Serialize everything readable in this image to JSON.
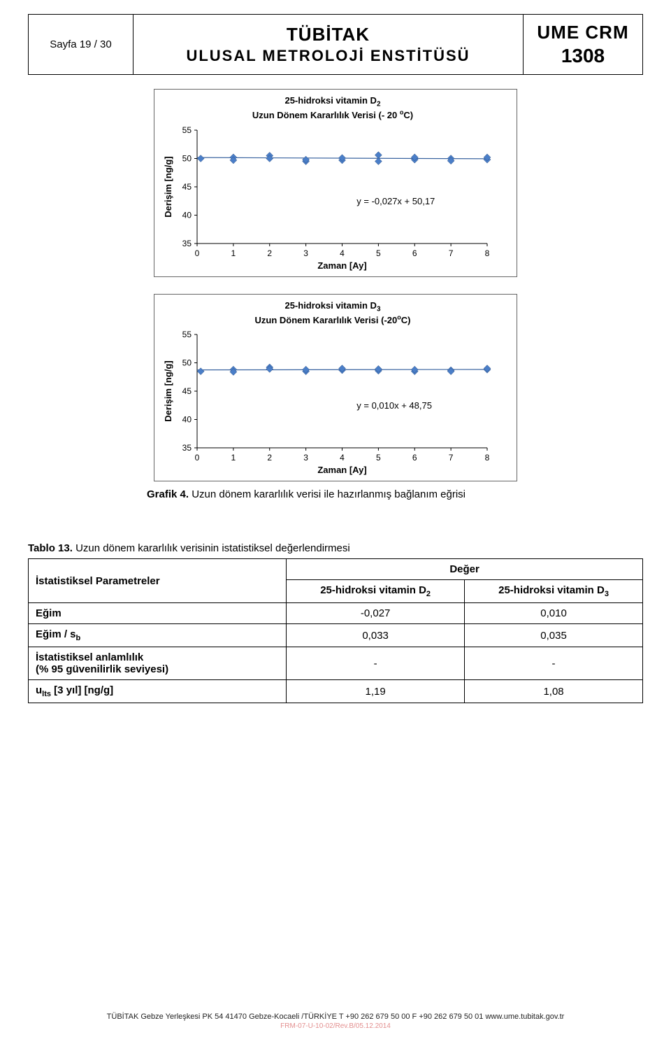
{
  "header": {
    "page_label": "Sayfa  19 / 30",
    "title_main": "TÜBİTAK",
    "title_sub": "ULUSAL  METROLOJİ  ENSTİTÜSÜ",
    "crm_main": "UME CRM",
    "crm_num": "1308"
  },
  "chart1": {
    "title_line1": "25-hidroksi vitamin D",
    "title_sub": "2",
    "title_line2": "Uzun Dönem Kararlılık Verisi (- 20 ",
    "title_sup": "o",
    "title_line2b": "C)",
    "ylabel": "Derişim [ng/g]",
    "xlabel": "Zaman [Ay]",
    "equation": "y = -0,027x + 50,17",
    "yticks": [
      35,
      40,
      45,
      50,
      55
    ],
    "xticks": [
      0,
      1,
      2,
      3,
      4,
      5,
      6,
      7,
      8
    ],
    "trend_y_start": 50.17,
    "trend_y_end": 49.95,
    "points": [
      {
        "x": 0.1,
        "y": 50.0
      },
      {
        "x": 1,
        "y": 50.2
      },
      {
        "x": 1,
        "y": 49.7
      },
      {
        "x": 2,
        "y": 50.5
      },
      {
        "x": 2,
        "y": 50.0
      },
      {
        "x": 3,
        "y": 49.5
      },
      {
        "x": 3,
        "y": 49.8
      },
      {
        "x": 4,
        "y": 49.7
      },
      {
        "x": 4,
        "y": 50.1
      },
      {
        "x": 5,
        "y": 50.6
      },
      {
        "x": 5,
        "y": 49.5
      },
      {
        "x": 6,
        "y": 49.8
      },
      {
        "x": 6,
        "y": 50.2
      },
      {
        "x": 7,
        "y": 50.0
      },
      {
        "x": 7,
        "y": 49.6
      },
      {
        "x": 8,
        "y": 49.8
      },
      {
        "x": 8,
        "y": 50.2
      }
    ],
    "marker_color": "#4a7ec8",
    "line_color": "#3a64a0",
    "axis_color": "#000"
  },
  "chart2": {
    "title_line1": "25-hidroksi vitamin D",
    "title_sub": "3",
    "title_line2": "Uzun Dönem Kararlılık Verisi (-20",
    "title_sup": "o",
    "title_line2b": "C)",
    "ylabel": "Derişim [ng/g]",
    "xlabel": "Zaman  [Ay]",
    "equation": "y = 0,010x + 48,75",
    "yticks": [
      35,
      40,
      45,
      50,
      55
    ],
    "xticks": [
      0,
      1,
      2,
      3,
      4,
      5,
      6,
      7,
      8
    ],
    "trend_y_start": 48.75,
    "trend_y_end": 48.83,
    "points": [
      {
        "x": 0.1,
        "y": 48.5
      },
      {
        "x": 1,
        "y": 48.8
      },
      {
        "x": 1,
        "y": 48.4
      },
      {
        "x": 2,
        "y": 49.2
      },
      {
        "x": 2,
        "y": 48.9
      },
      {
        "x": 3,
        "y": 48.5
      },
      {
        "x": 3,
        "y": 48.8
      },
      {
        "x": 4,
        "y": 48.7
      },
      {
        "x": 4,
        "y": 49.0
      },
      {
        "x": 5,
        "y": 48.6
      },
      {
        "x": 5,
        "y": 48.9
      },
      {
        "x": 6,
        "y": 48.5
      },
      {
        "x": 6,
        "y": 48.8
      },
      {
        "x": 7,
        "y": 48.7
      },
      {
        "x": 7,
        "y": 48.5
      },
      {
        "x": 8,
        "y": 48.8
      },
      {
        "x": 8,
        "y": 49.0
      }
    ],
    "marker_color": "#4a7ec8",
    "line_color": "#3a64a0",
    "axis_color": "#000"
  },
  "caption": {
    "label": "Grafik 4.",
    "text": " Uzun dönem kararlılık verisi ile hazırlanmış bağlanım eğrisi"
  },
  "table": {
    "label": "Tablo 13.",
    "label_text": " Uzun dönem kararlılık verisinin istatistiksel değerlendirmesi",
    "col0": "İstatistiksel Parametreler",
    "col_group": "Değer",
    "col1": "25-hidroksi vitamin D",
    "col1_sub": "2",
    "col2": "25-hidroksi vitamin D",
    "col2_sub": "3",
    "rows": [
      {
        "h": "Eğim",
        "v1": "-0,027",
        "v2": "0,010"
      },
      {
        "h": "Eğim / s",
        "hsub": "b",
        "v1": "0,033",
        "v2": "0,035"
      },
      {
        "h": "İstatistiksel anlamlılık",
        "h2": "(% 95 güvenilirlik seviyesi)",
        "v1": "-",
        "v2": "-"
      },
      {
        "h": "u",
        "hsub": "lts",
        "h2": " [3 yıl] [ng/g]",
        "v1": "1,19",
        "v2": "1,08"
      }
    ]
  },
  "footer": {
    "line": "TÜBİTAK Gebze Yerleşkesi  PK 54  41470 Gebze-Kocaeli /TÜRKİYE     T +90 262 679 50 00     F +90 262 679 50 01     www.ume.tubitak.gov.tr",
    "rev": "FRM-07-U-10-02/Rev.B/05.12.2014"
  }
}
